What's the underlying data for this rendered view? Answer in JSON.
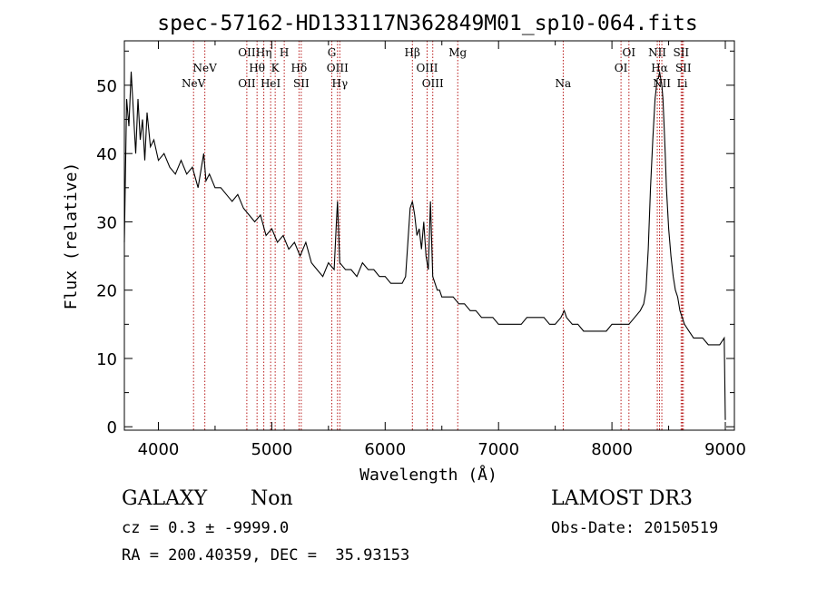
{
  "chart_data": {
    "type": "line",
    "title": "spec-57162-HD133117N362849M01_sp10-064.fits",
    "xlabel": "Wavelength (Å)",
    "ylabel": "Flux (relative)",
    "xlim": [
      3700,
      9080
    ],
    "ylim": [
      -0.5,
      56.5
    ],
    "x_ticks": [
      4000,
      5000,
      6000,
      7000,
      8000,
      9000
    ],
    "y_ticks": [
      0,
      10,
      20,
      30,
      40,
      50
    ],
    "series": [
      {
        "name": "spectrum",
        "x": [
          3700,
          3720,
          3740,
          3760,
          3780,
          3800,
          3820,
          3840,
          3860,
          3880,
          3900,
          3930,
          3960,
          4000,
          4050,
          4100,
          4150,
          4200,
          4250,
          4300,
          4350,
          4380,
          4400,
          4420,
          4450,
          4500,
          4550,
          4600,
          4650,
          4700,
          4750,
          4800,
          4850,
          4900,
          4950,
          5000,
          5050,
          5100,
          5150,
          5200,
          5250,
          5300,
          5350,
          5400,
          5450,
          5500,
          5550,
          5570,
          5580,
          5600,
          5650,
          5700,
          5750,
          5800,
          5850,
          5900,
          5950,
          6000,
          6050,
          6100,
          6150,
          6180,
          6200,
          6220,
          6240,
          6260,
          6280,
          6300,
          6320,
          6340,
          6360,
          6380,
          6400,
          6420,
          6440,
          6460,
          6480,
          6500,
          6550,
          6600,
          6650,
          6700,
          6750,
          6800,
          6850,
          6900,
          6950,
          7000,
          7050,
          7100,
          7150,
          7200,
          7250,
          7300,
          7350,
          7400,
          7450,
          7500,
          7550,
          7580,
          7600,
          7650,
          7700,
          7750,
          7800,
          7850,
          7900,
          7950,
          8000,
          8050,
          8100,
          8150,
          8200,
          8250,
          8280,
          8300,
          8320,
          8340,
          8360,
          8380,
          8400,
          8410,
          8420,
          8430,
          8440,
          8450,
          8460,
          8470,
          8480,
          8500,
          8520,
          8540,
          8560,
          8580,
          8600,
          8620,
          8640,
          8680,
          8720,
          8760,
          8800,
          8850,
          8900,
          8950,
          8990,
          9000
        ],
        "y": [
          27,
          48,
          44,
          52,
          46,
          40,
          48,
          42,
          45,
          39,
          46,
          41,
          42,
          39,
          40,
          38,
          37,
          39,
          37,
          38,
          35,
          38,
          40,
          36,
          37,
          35,
          35,
          34,
          33,
          34,
          32,
          31,
          30,
          31,
          28,
          29,
          27,
          28,
          26,
          27,
          25,
          27,
          24,
          23,
          22,
          24,
          23,
          30,
          33,
          24,
          23,
          23,
          22,
          24,
          23,
          23,
          22,
          22,
          21,
          21,
          21,
          22,
          27,
          32,
          33,
          31,
          28,
          29,
          26,
          30,
          25,
          23,
          33,
          22,
          21,
          20,
          20,
          19,
          19,
          19,
          18,
          18,
          17,
          17,
          16,
          16,
          16,
          15,
          15,
          15,
          15,
          15,
          16,
          16,
          16,
          16,
          15,
          15,
          16,
          17,
          16,
          15,
          15,
          14,
          14,
          14,
          14,
          14,
          15,
          15,
          15,
          15,
          16,
          17,
          18,
          20,
          26,
          35,
          42,
          48,
          51,
          51,
          52,
          51,
          50,
          48,
          44,
          40,
          35,
          29,
          25,
          22,
          20,
          19,
          17,
          16,
          15,
          14,
          13,
          13,
          13,
          12,
          12,
          12,
          13,
          1
        ]
      }
    ],
    "line_labels": [
      {
        "label": "NeV",
        "wavelength": 4310,
        "row": "bottom"
      },
      {
        "label": "NeV",
        "wavelength": 4410,
        "row": "middle"
      },
      {
        "label": "OII",
        "wavelength": 4780,
        "row": "top"
      },
      {
        "label": "OII",
        "wavelength": 4780,
        "row": "bottom"
      },
      {
        "label": "Hθ",
        "wavelength": 4870,
        "row": "middle"
      },
      {
        "label": "Hη",
        "wavelength": 4930,
        "row": "top"
      },
      {
        "label": "HeI",
        "wavelength": 4990,
        "row": "bottom"
      },
      {
        "label": "K",
        "wavelength": 5030,
        "row": "middle"
      },
      {
        "label": "H",
        "wavelength": 5110,
        "row": "top"
      },
      {
        "label": "Hδ",
        "wavelength": 5240,
        "row": "middle"
      },
      {
        "label": "SII",
        "wavelength": 5260,
        "row": "bottom"
      },
      {
        "label": "G",
        "wavelength": 5530,
        "row": "top"
      },
      {
        "label": "OIII",
        "wavelength": 5580,
        "row": "middle"
      },
      {
        "label": "Hγ",
        "wavelength": 5600,
        "row": "bottom"
      },
      {
        "label": "Hβ",
        "wavelength": 6240,
        "row": "top"
      },
      {
        "label": "OIII",
        "wavelength": 6370,
        "row": "middle"
      },
      {
        "label": "OIII",
        "wavelength": 6420,
        "row": "bottom"
      },
      {
        "label": "Mg",
        "wavelength": 6640,
        "row": "top"
      },
      {
        "label": "Na",
        "wavelength": 7570,
        "row": "bottom"
      },
      {
        "label": "OI",
        "wavelength": 8080,
        "row": "middle"
      },
      {
        "label": "OI",
        "wavelength": 8150,
        "row": "top"
      },
      {
        "label": "NII",
        "wavelength": 8400,
        "row": "top"
      },
      {
        "label": "Hα",
        "wavelength": 8420,
        "row": "middle"
      },
      {
        "label": "NII",
        "wavelength": 8440,
        "row": "bottom"
      },
      {
        "label": "SII",
        "wavelength": 8610,
        "row": "top"
      },
      {
        "label": "SII",
        "wavelength": 8630,
        "row": "middle"
      },
      {
        "label": "Li",
        "wavelength": 8620,
        "row": "bottom"
      }
    ]
  },
  "info": {
    "class_label": "GALAXY",
    "subclass": "Non",
    "survey": "LAMOST DR3",
    "cz": "cz = 0.3 ± -9999.0",
    "obs_date": "Obs-Date: 20150519",
    "radec": "RA = 200.40359, DEC =  35.93153"
  },
  "colors": {
    "line_marker": "#b00000",
    "spectrum": "#000000",
    "axes": "#000000"
  }
}
